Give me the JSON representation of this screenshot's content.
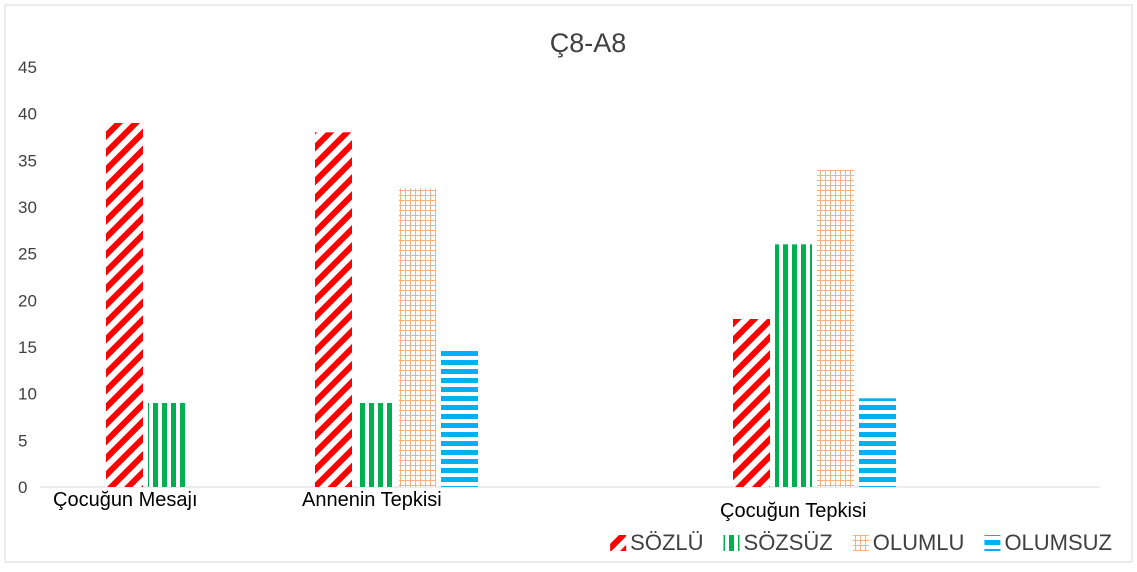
{
  "chart_data": {
    "type": "bar",
    "title": "Ç8-A8",
    "categories": [
      "Çocuğun Mesajı",
      "Annenin Tepkisi",
      null,
      "Çocuğun Tepkisi"
    ],
    "series": [
      {
        "name": "SÖZLÜ",
        "color": "#ff0000",
        "pattern": "diagonal",
        "values": [
          39,
          38,
          null,
          18
        ]
      },
      {
        "name": "SÖZSÜZ",
        "color": "#00b050",
        "pattern": "vertical",
        "values": [
          9,
          9,
          null,
          26
        ]
      },
      {
        "name": "OLUMLU",
        "color": "#f4b183",
        "pattern": "grid",
        "values": [
          null,
          32,
          null,
          34
        ]
      },
      {
        "name": "OLUMSUZ",
        "color": "#00b0f0",
        "pattern": "horizontal",
        "values": [
          null,
          15,
          null,
          9.5
        ]
      }
    ],
    "ylim": [
      0,
      45
    ],
    "yticks": [
      0,
      5,
      10,
      15,
      20,
      25,
      30,
      35,
      40,
      45
    ],
    "legend": "bottom-right"
  }
}
